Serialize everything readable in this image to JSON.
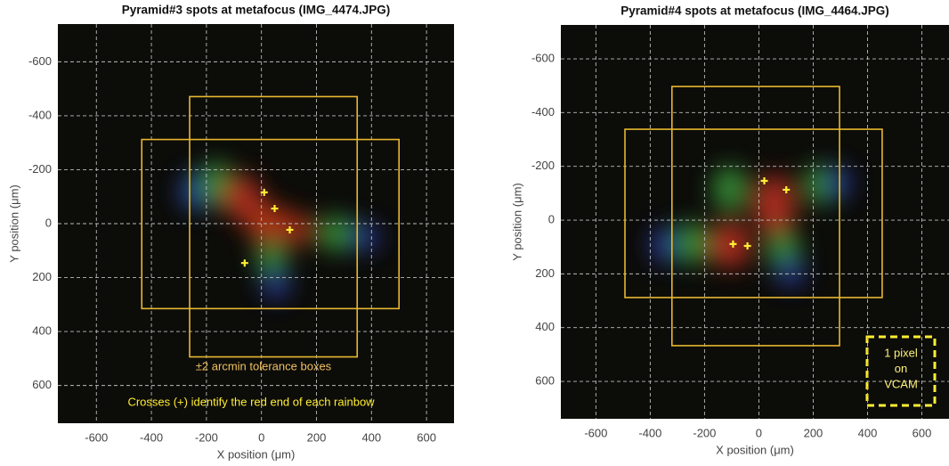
{
  "chart_data": [
    {
      "type": "scatter",
      "title": "Pyramid#3 spots at metafocus (IMG_4474.JPG)",
      "x_label": "X position (μm)",
      "y_label": "Y position (μm)",
      "xlim": [
        -740,
        700
      ],
      "ylim": [
        740,
        -740
      ],
      "y_inverted": true,
      "xticks": [
        -600,
        -400,
        -200,
        0,
        200,
        400,
        600
      ],
      "yticks": [
        -600,
        -400,
        -200,
        0,
        200,
        400,
        600
      ],
      "grid": true,
      "color": "#ffee33",
      "x": [
        10,
        48,
        103,
        -61
      ],
      "values": [
        -116,
        -56,
        23,
        146
      ],
      "box_color": "#e8b830",
      "boxes": [
        {
          "x": [
            -261,
            348
          ],
          "y": [
            -471,
            494
          ]
        },
        {
          "x": [
            -435,
            500
          ],
          "y": [
            -312,
            315
          ]
        }
      ],
      "annotations": [
        "±2 arcmin tolerance boxes",
        "Crosses (+) identify the red end of each rainbow"
      ]
    },
    {
      "type": "scatter",
      "title": "Pyramid#4 spots at metafocus (IMG_4464.JPG)",
      "x_label": "X position (μm)",
      "y_label": "Y position (μm)",
      "xlim": [
        -729,
        700
      ],
      "ylim": [
        739,
        -726
      ],
      "y_inverted": true,
      "xticks": [
        -600,
        -400,
        -200,
        0,
        200,
        400,
        600
      ],
      "yticks": [
        -600,
        -400,
        -200,
        0,
        200,
        400,
        600
      ],
      "grid": true,
      "color": "#ffee33",
      "x": [
        20,
        101,
        -95,
        -42
      ],
      "values": [
        -146,
        -113,
        89,
        96
      ],
      "box_color": "#e8b830",
      "boxes": [
        {
          "x": [
            -320,
            297
          ],
          "y": [
            -497,
            467
          ]
        },
        {
          "x": [
            -493,
            454
          ],
          "y": [
            -338,
            288
          ]
        }
      ],
      "annotations": [
        [
          "1 pixel",
          "on",
          "VCAM"
        ]
      ]
    }
  ]
}
